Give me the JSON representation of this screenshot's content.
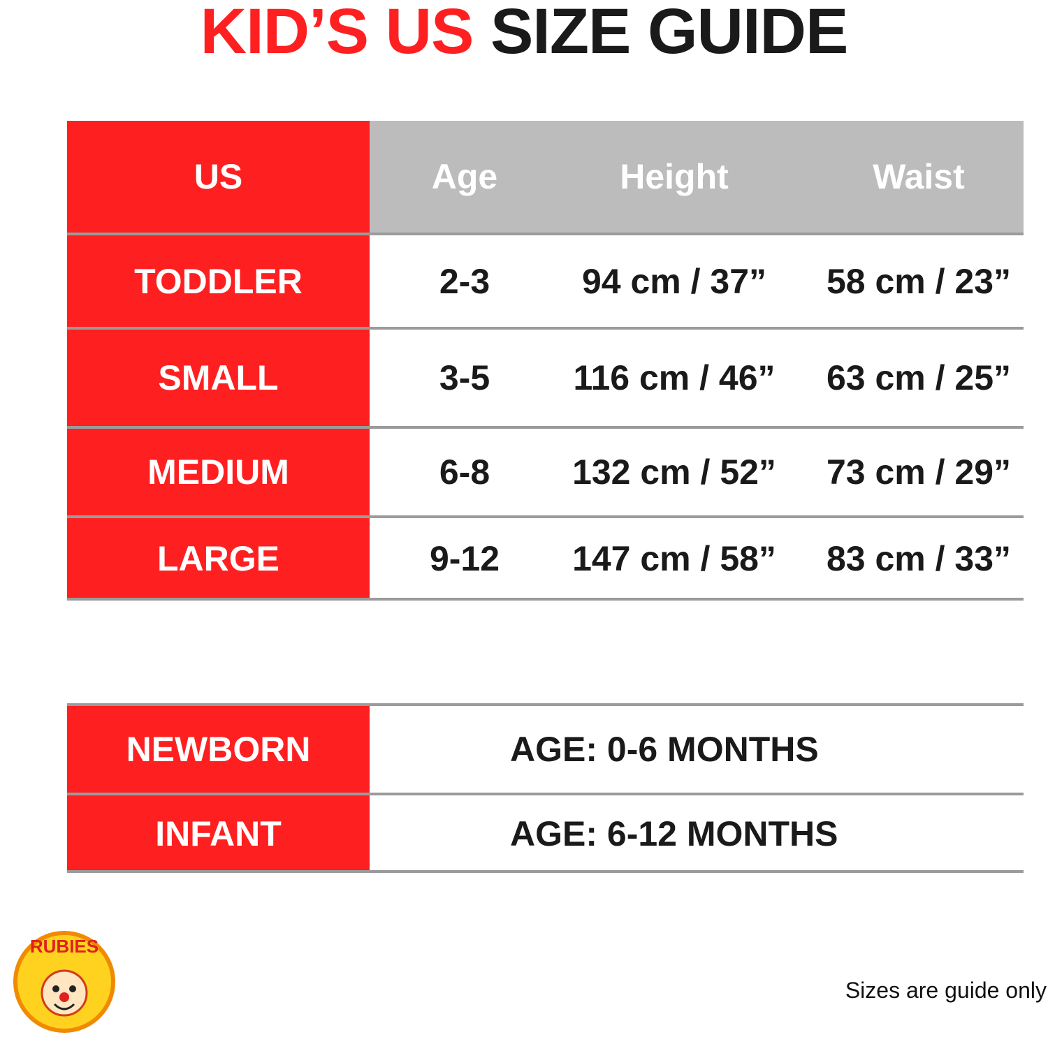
{
  "header": {
    "title": [
      "KID’S US",
      "SIZE GUIDE"
    ]
  },
  "size_table": {
    "columns": [
      "US",
      "Age",
      "Height",
      "Waist"
    ],
    "rows": [
      [
        "TODDLER",
        "2-3",
        "94 cm / 37”",
        "58 cm / 23”"
      ],
      [
        "SMALL",
        "3-5",
        "116 cm / 46”",
        "63 cm / 25”"
      ],
      [
        "MEDIUM",
        "6-8",
        "132 cm / 52”",
        "73 cm / 29”"
      ],
      [
        "LARGE",
        "9-12",
        "147 cm / 58”",
        "83 cm / 33”"
      ]
    ]
  },
  "age_table": {
    "rows": [
      [
        "NEWBORN",
        "AGE: 0-6 MONTHS"
      ],
      [
        "INFANT",
        "AGE: 6-12 MONTHS"
      ]
    ]
  },
  "logo": {
    "text": "RUBIES"
  },
  "footer": {
    "note": "Sizes are guide only"
  }
}
